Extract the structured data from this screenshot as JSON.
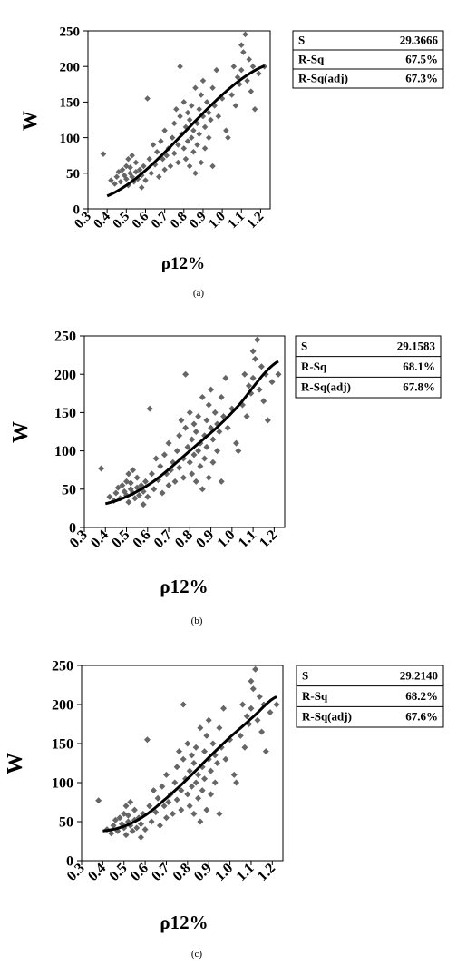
{
  "chart_data": [
    {
      "type": "scatter",
      "caption": "(a)",
      "xlabel": "ρ12%",
      "ylabel": "W",
      "xlim": [
        0.3,
        1.25
      ],
      "ylim": [
        0,
        250
      ],
      "xticks": [
        "0.3",
        "0.4",
        "0.5",
        "0.6",
        "0.7",
        "0.8",
        "0.9",
        "1.0",
        "1.1",
        "1.2"
      ],
      "yticks": [
        "0",
        "50",
        "100",
        "150",
        "200",
        "250"
      ],
      "fit": {
        "model": "linear",
        "x": [
          0.4,
          1.22
        ],
        "y": [
          18,
          201
        ]
      },
      "stats": [
        {
          "label": "S",
          "value": "29.3666"
        },
        {
          "label": "R-Sq",
          "value": "67.5%"
        },
        {
          "label": "R-Sq(adj)",
          "value": "67.3%"
        }
      ],
      "points": [
        [
          0.38,
          77
        ],
        [
          0.42,
          40
        ],
        [
          0.44,
          35
        ],
        [
          0.45,
          45
        ],
        [
          0.46,
          52
        ],
        [
          0.47,
          38
        ],
        [
          0.48,
          55
        ],
        [
          0.49,
          47
        ],
        [
          0.5,
          60
        ],
        [
          0.5,
          42
        ],
        [
          0.51,
          70
        ],
        [
          0.51,
          33
        ],
        [
          0.52,
          50
        ],
        [
          0.52,
          58
        ],
        [
          0.53,
          45
        ],
        [
          0.53,
          75
        ],
        [
          0.54,
          38
        ],
        [
          0.55,
          52
        ],
        [
          0.55,
          65
        ],
        [
          0.56,
          42
        ],
        [
          0.57,
          55
        ],
        [
          0.58,
          30
        ],
        [
          0.58,
          47
        ],
        [
          0.59,
          60
        ],
        [
          0.6,
          40
        ],
        [
          0.61,
          155
        ],
        [
          0.62,
          70
        ],
        [
          0.63,
          50
        ],
        [
          0.64,
          90
        ],
        [
          0.65,
          62
        ],
        [
          0.66,
          80
        ],
        [
          0.67,
          45
        ],
        [
          0.68,
          95
        ],
        [
          0.69,
          70
        ],
        [
          0.7,
          55
        ],
        [
          0.7,
          110
        ],
        [
          0.71,
          75
        ],
        [
          0.72,
          85
        ],
        [
          0.73,
          60
        ],
        [
          0.74,
          100
        ],
        [
          0.75,
          120
        ],
        [
          0.75,
          78
        ],
        [
          0.76,
          140
        ],
        [
          0.77,
          90
        ],
        [
          0.77,
          65
        ],
        [
          0.78,
          130
        ],
        [
          0.78,
          200
        ],
        [
          0.79,
          105
        ],
        [
          0.8,
          85
        ],
        [
          0.8,
          150
        ],
        [
          0.81,
          115
        ],
        [
          0.81,
          70
        ],
        [
          0.82,
          95
        ],
        [
          0.82,
          135
        ],
        [
          0.83,
          125
        ],
        [
          0.83,
          60
        ],
        [
          0.84,
          100
        ],
        [
          0.84,
          145
        ],
        [
          0.85,
          110
        ],
        [
          0.85,
          80
        ],
        [
          0.86,
          170
        ],
        [
          0.86,
          50
        ],
        [
          0.87,
          120
        ],
        [
          0.87,
          90
        ],
        [
          0.88,
          140
        ],
        [
          0.88,
          105
        ],
        [
          0.89,
          160
        ],
        [
          0.89,
          65
        ],
        [
          0.9,
          130
        ],
        [
          0.9,
          180
        ],
        [
          0.91,
          115
        ],
        [
          0.91,
          85
        ],
        [
          0.92,
          150
        ],
        [
          0.93,
          100
        ],
        [
          0.93,
          135
        ],
        [
          0.94,
          125
        ],
        [
          0.95,
          170
        ],
        [
          0.95,
          60
        ],
        [
          0.96,
          145
        ],
        [
          0.97,
          195
        ],
        [
          0.98,
          130
        ],
        [
          1.0,
          155
        ],
        [
          1.02,
          110
        ],
        [
          1.03,
          100
        ],
        [
          1.05,
          160
        ],
        [
          1.06,
          200
        ],
        [
          1.07,
          145
        ],
        [
          1.08,
          185
        ],
        [
          1.09,
          175
        ],
        [
          1.1,
          230
        ],
        [
          1.1,
          195
        ],
        [
          1.11,
          220
        ],
        [
          1.12,
          245
        ],
        [
          1.13,
          180
        ],
        [
          1.14,
          210
        ],
        [
          1.15,
          165
        ],
        [
          1.16,
          200
        ],
        [
          1.17,
          140
        ],
        [
          1.19,
          190
        ],
        [
          1.22,
          200
        ]
      ]
    },
    {
      "type": "scatter",
      "caption": "(b)",
      "xlabel": "ρ12%",
      "ylabel": "W",
      "xlim": [
        0.3,
        1.25
      ],
      "ylim": [
        0,
        250
      ],
      "xticks": [
        "0.3",
        "0.4",
        "0.5",
        "0.6",
        "0.7",
        "0.8",
        "0.9",
        "1.0",
        "1.1",
        "1.2"
      ],
      "yticks": [
        "0",
        "50",
        "100",
        "150",
        "200",
        "250"
      ],
      "fit": {
        "model": "quadratic",
        "x": [
          0.4,
          0.6,
          0.8,
          1.0,
          1.22
        ],
        "y": [
          31,
          55,
          100,
          150,
          217
        ]
      },
      "stats": [
        {
          "label": "S",
          "value": "29.1583"
        },
        {
          "label": "R-Sq",
          "value": "68.1%"
        },
        {
          "label": "R-Sq(adj)",
          "value": "67.8%"
        }
      ],
      "points": [
        [
          0.38,
          77
        ],
        [
          0.42,
          40
        ],
        [
          0.44,
          35
        ],
        [
          0.45,
          45
        ],
        [
          0.46,
          52
        ],
        [
          0.47,
          38
        ],
        [
          0.48,
          55
        ],
        [
          0.49,
          47
        ],
        [
          0.5,
          60
        ],
        [
          0.5,
          42
        ],
        [
          0.51,
          70
        ],
        [
          0.51,
          33
        ],
        [
          0.52,
          50
        ],
        [
          0.52,
          58
        ],
        [
          0.53,
          45
        ],
        [
          0.53,
          75
        ],
        [
          0.54,
          38
        ],
        [
          0.55,
          52
        ],
        [
          0.55,
          65
        ],
        [
          0.56,
          42
        ],
        [
          0.57,
          55
        ],
        [
          0.58,
          30
        ],
        [
          0.58,
          47
        ],
        [
          0.59,
          60
        ],
        [
          0.6,
          40
        ],
        [
          0.61,
          155
        ],
        [
          0.62,
          70
        ],
        [
          0.63,
          50
        ],
        [
          0.64,
          90
        ],
        [
          0.65,
          62
        ],
        [
          0.66,
          80
        ],
        [
          0.67,
          45
        ],
        [
          0.68,
          95
        ],
        [
          0.69,
          70
        ],
        [
          0.7,
          55
        ],
        [
          0.7,
          110
        ],
        [
          0.71,
          75
        ],
        [
          0.72,
          85
        ],
        [
          0.73,
          60
        ],
        [
          0.74,
          100
        ],
        [
          0.75,
          120
        ],
        [
          0.75,
          78
        ],
        [
          0.76,
          140
        ],
        [
          0.77,
          90
        ],
        [
          0.77,
          65
        ],
        [
          0.78,
          130
        ],
        [
          0.78,
          200
        ],
        [
          0.79,
          105
        ],
        [
          0.8,
          85
        ],
        [
          0.8,
          150
        ],
        [
          0.81,
          115
        ],
        [
          0.81,
          70
        ],
        [
          0.82,
          95
        ],
        [
          0.82,
          135
        ],
        [
          0.83,
          125
        ],
        [
          0.83,
          60
        ],
        [
          0.84,
          100
        ],
        [
          0.84,
          145
        ],
        [
          0.85,
          110
        ],
        [
          0.85,
          80
        ],
        [
          0.86,
          170
        ],
        [
          0.86,
          50
        ],
        [
          0.87,
          120
        ],
        [
          0.87,
          90
        ],
        [
          0.88,
          140
        ],
        [
          0.88,
          105
        ],
        [
          0.89,
          160
        ],
        [
          0.89,
          65
        ],
        [
          0.9,
          130
        ],
        [
          0.9,
          180
        ],
        [
          0.91,
          115
        ],
        [
          0.91,
          85
        ],
        [
          0.92,
          150
        ],
        [
          0.93,
          100
        ],
        [
          0.93,
          135
        ],
        [
          0.94,
          125
        ],
        [
          0.95,
          170
        ],
        [
          0.95,
          60
        ],
        [
          0.96,
          145
        ],
        [
          0.97,
          195
        ],
        [
          0.98,
          130
        ],
        [
          1.0,
          155
        ],
        [
          1.02,
          110
        ],
        [
          1.03,
          100
        ],
        [
          1.05,
          160
        ],
        [
          1.06,
          200
        ],
        [
          1.07,
          145
        ],
        [
          1.08,
          185
        ],
        [
          1.09,
          175
        ],
        [
          1.1,
          230
        ],
        [
          1.1,
          195
        ],
        [
          1.11,
          220
        ],
        [
          1.12,
          245
        ],
        [
          1.13,
          180
        ],
        [
          1.14,
          210
        ],
        [
          1.15,
          165
        ],
        [
          1.16,
          200
        ],
        [
          1.17,
          140
        ],
        [
          1.19,
          190
        ],
        [
          1.22,
          200
        ]
      ]
    },
    {
      "type": "scatter",
      "caption": "(c)",
      "xlabel": "ρ12%",
      "ylabel": "W",
      "xlim": [
        0.3,
        1.25
      ],
      "ylim": [
        0,
        250
      ],
      "xticks": [
        "0.3",
        "0.4",
        "0.5",
        "0.6",
        "0.7",
        "0.8",
        "0.9",
        "1.0",
        "1.1",
        "1.2"
      ],
      "yticks": [
        "0",
        "50",
        "100",
        "150",
        "200",
        "250"
      ],
      "fit": {
        "model": "cubic",
        "x": [
          0.4,
          0.5,
          0.6,
          0.7,
          0.8,
          0.9,
          1.0,
          1.1,
          1.22
        ],
        "y": [
          38,
          44,
          58,
          80,
          105,
          132,
          158,
          182,
          210
        ]
      },
      "stats": [
        {
          "label": "S",
          "value": "29.2140"
        },
        {
          "label": "R-Sq",
          "value": "68.2%"
        },
        {
          "label": "R-Sq(adj)",
          "value": "67.6%"
        }
      ],
      "points": [
        [
          0.38,
          77
        ],
        [
          0.42,
          40
        ],
        [
          0.44,
          35
        ],
        [
          0.45,
          45
        ],
        [
          0.46,
          52
        ],
        [
          0.47,
          38
        ],
        [
          0.48,
          55
        ],
        [
          0.49,
          47
        ],
        [
          0.5,
          60
        ],
        [
          0.5,
          42
        ],
        [
          0.51,
          70
        ],
        [
          0.51,
          33
        ],
        [
          0.52,
          50
        ],
        [
          0.52,
          58
        ],
        [
          0.53,
          45
        ],
        [
          0.53,
          75
        ],
        [
          0.54,
          38
        ],
        [
          0.55,
          52
        ],
        [
          0.55,
          65
        ],
        [
          0.56,
          42
        ],
        [
          0.57,
          55
        ],
        [
          0.58,
          30
        ],
        [
          0.58,
          47
        ],
        [
          0.59,
          60
        ],
        [
          0.6,
          40
        ],
        [
          0.61,
          155
        ],
        [
          0.62,
          70
        ],
        [
          0.63,
          50
        ],
        [
          0.64,
          90
        ],
        [
          0.65,
          62
        ],
        [
          0.66,
          80
        ],
        [
          0.67,
          45
        ],
        [
          0.68,
          95
        ],
        [
          0.69,
          70
        ],
        [
          0.7,
          55
        ],
        [
          0.7,
          110
        ],
        [
          0.71,
          75
        ],
        [
          0.72,
          85
        ],
        [
          0.73,
          60
        ],
        [
          0.74,
          100
        ],
        [
          0.75,
          120
        ],
        [
          0.75,
          78
        ],
        [
          0.76,
          140
        ],
        [
          0.77,
          90
        ],
        [
          0.77,
          65
        ],
        [
          0.78,
          130
        ],
        [
          0.78,
          200
        ],
        [
          0.79,
          105
        ],
        [
          0.8,
          85
        ],
        [
          0.8,
          150
        ],
        [
          0.81,
          115
        ],
        [
          0.81,
          70
        ],
        [
          0.82,
          95
        ],
        [
          0.82,
          135
        ],
        [
          0.83,
          125
        ],
        [
          0.83,
          60
        ],
        [
          0.84,
          100
        ],
        [
          0.84,
          145
        ],
        [
          0.85,
          110
        ],
        [
          0.85,
          80
        ],
        [
          0.86,
          170
        ],
        [
          0.86,
          50
        ],
        [
          0.87,
          120
        ],
        [
          0.87,
          90
        ],
        [
          0.88,
          140
        ],
        [
          0.88,
          105
        ],
        [
          0.89,
          160
        ],
        [
          0.89,
          65
        ],
        [
          0.9,
          130
        ],
        [
          0.9,
          180
        ],
        [
          0.91,
          115
        ],
        [
          0.91,
          85
        ],
        [
          0.92,
          150
        ],
        [
          0.93,
          100
        ],
        [
          0.93,
          135
        ],
        [
          0.94,
          125
        ],
        [
          0.95,
          170
        ],
        [
          0.95,
          60
        ],
        [
          0.96,
          145
        ],
        [
          0.97,
          195
        ],
        [
          0.98,
          130
        ],
        [
          1.0,
          155
        ],
        [
          1.02,
          110
        ],
        [
          1.03,
          100
        ],
        [
          1.05,
          160
        ],
        [
          1.06,
          200
        ],
        [
          1.07,
          145
        ],
        [
          1.08,
          185
        ],
        [
          1.09,
          175
        ],
        [
          1.1,
          230
        ],
        [
          1.1,
          195
        ],
        [
          1.11,
          220
        ],
        [
          1.12,
          245
        ],
        [
          1.13,
          180
        ],
        [
          1.14,
          210
        ],
        [
          1.15,
          165
        ],
        [
          1.16,
          200
        ],
        [
          1.17,
          140
        ],
        [
          1.19,
          190
        ],
        [
          1.22,
          200
        ]
      ]
    }
  ]
}
